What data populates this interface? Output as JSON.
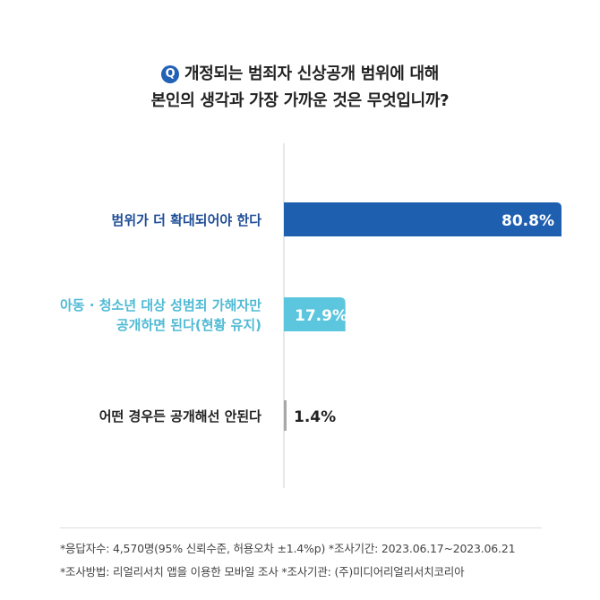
{
  "question": {
    "badge": "Q",
    "line1": "개정되는 범죄자 신상공개 범위에 대해",
    "line2": "본인의 생각과 가장 가까운 것은 무엇입니까?"
  },
  "colors": {
    "badge": "#2261b6",
    "bar_primary": "#1f5fb0",
    "bar_secondary": "#5cc6de",
    "bar_small": "#a8a8a8",
    "label_primary": "#1f4e96",
    "label_secondary": "#4fbad4",
    "label_default": "#222222",
    "axis": "#cfcfcf"
  },
  "chart_data": {
    "type": "bar",
    "orientation": "horizontal",
    "title": "",
    "categories": [
      [
        "범위가 더 확대되어야 한다"
      ],
      [
        "아동 · 청소년 대상 성범죄 가해자만",
        "공개하면 된다(현황 유지)"
      ],
      [
        "어떤 경우든 공개해선 안된다"
      ]
    ],
    "values": [
      80.8,
      17.9,
      1.4
    ],
    "value_labels": [
      "80.8%",
      "17.9%",
      "1.4%"
    ],
    "unit": "%",
    "xlim": [
      0,
      80.8
    ],
    "grid": false,
    "legend": "none"
  },
  "footnotes": {
    "line1": "*응답자수: 4,570명(95% 신뢰수준, 허용오차 ±1.4%p)  *조사기간: 2023.06.17~2023.06.21",
    "line2": "*조사방법: 리얼리서치 앱을 이용한 모바일 조사  *조사기관: (주)미디어리얼리서치코리아"
  }
}
